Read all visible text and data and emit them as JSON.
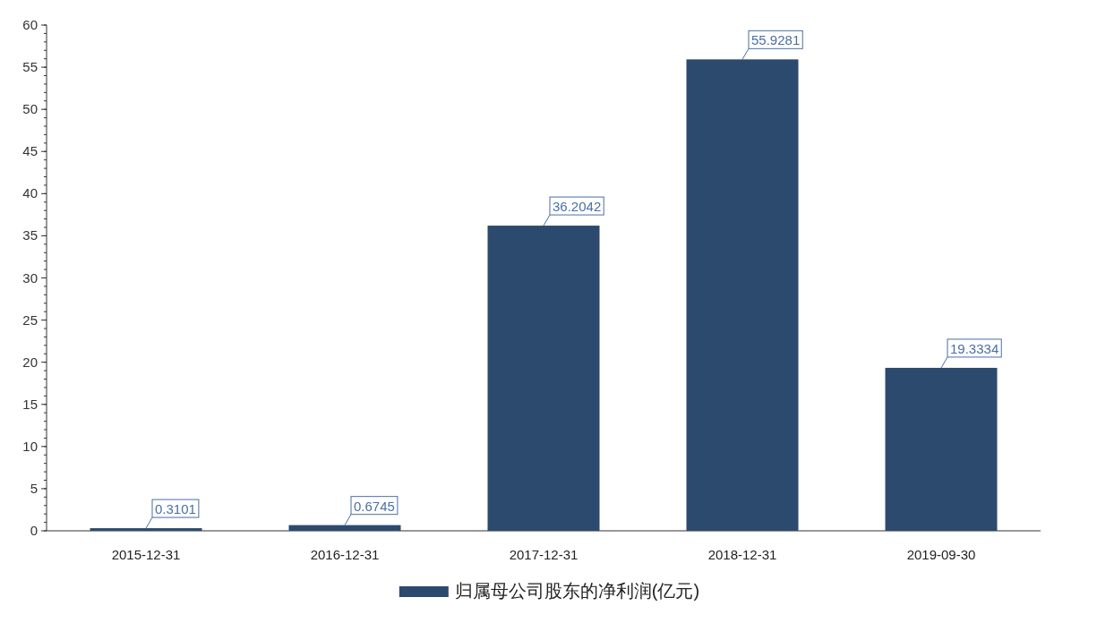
{
  "chart_data": {
    "type": "bar",
    "categories": [
      "2015-12-31",
      "2016-12-31",
      "2017-12-31",
      "2018-12-31",
      "2019-09-30"
    ],
    "series": [
      {
        "name": "归属母公司股东的净利润(亿元)",
        "color": "#2c4a6e",
        "values": [
          0.3101,
          0.6745,
          36.2042,
          55.9281,
          19.3334
        ]
      }
    ],
    "ylim": [
      0,
      60
    ],
    "yticks": [
      0,
      5,
      10,
      15,
      20,
      25,
      30,
      35,
      40,
      45,
      50,
      55,
      60
    ],
    "data_labels": true,
    "legend": "bottom",
    "grid": false
  }
}
